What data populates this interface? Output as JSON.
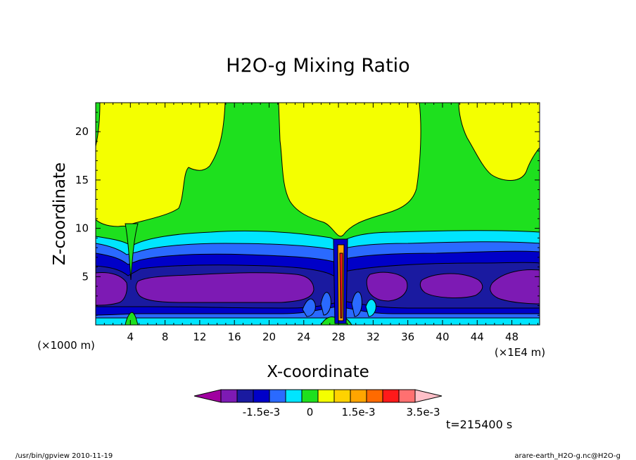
{
  "chart_data": {
    "type": "heatmap",
    "subtype": "filled-contour",
    "title": "H2O-g Mixing Ratio",
    "xlabel": "X-coordinate",
    "ylabel": "Z-coordinate",
    "x_unit": "(×1E4 m)",
    "y_unit": "(×1000 m)",
    "xlim": [
      0,
      51.2
    ],
    "ylim": [
      0,
      23
    ],
    "x_ticks": [
      4,
      8,
      12,
      16,
      20,
      24,
      28,
      32,
      36,
      40,
      44,
      48
    ],
    "y_ticks": [
      5,
      10,
      15,
      20
    ],
    "colorbar": {
      "colors": [
        "#a000a0",
        "#7d1ab4",
        "#1a1aa0",
        "#0000c8",
        "#2a6aff",
        "#00e5ff",
        "#1ee01e",
        "#f4ff00",
        "#ffd200",
        "#ffa500",
        "#ff6a00",
        "#ff1a1a",
        "#ff7070",
        "#ffc0c8"
      ],
      "tick_labels": [
        "-1.5e-3",
        "0",
        "1.5e-3",
        "3.5e-3"
      ],
      "tick_values": [
        -0.0015,
        0,
        0.0015,
        0.0035
      ]
    },
    "field_summary": [
      {
        "color": "#f4ff00",
        "region": "upper layer, z > 10 km, except near x=3-4, x=28 and x=37-51"
      },
      {
        "color": "#1ee01e",
        "region": "z 8.5-10 km band and upper edges"
      },
      {
        "color": "#00e5ff",
        "region": "z 7.5-8.5 km band"
      },
      {
        "color": "#0000c8",
        "region": "z 6-7.5 km and z 1-2 km bands"
      },
      {
        "color": "#7d1ab4",
        "region": "core at z 2-5.5 km"
      },
      {
        "color": "#ff1a1a",
        "region": "narrow column near x=28"
      }
    ],
    "time_label": "t=215400 s"
  },
  "footer": {
    "left": "/usr/bin/gpview  2010-11-19",
    "right": "arare-earth_H2O-g.nc@H2O-g"
  }
}
